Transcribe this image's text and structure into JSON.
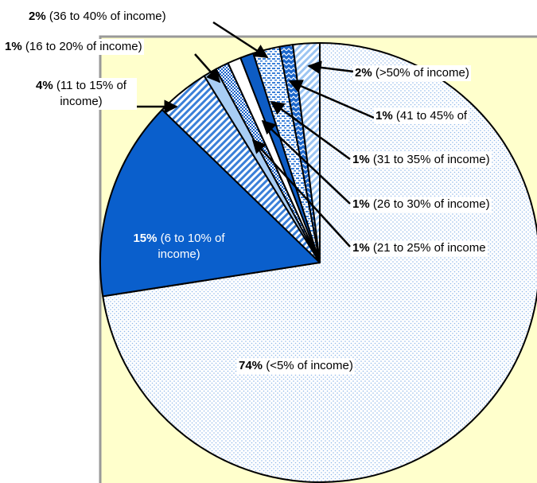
{
  "chart_data": {
    "type": "pie",
    "categories": [
      "(<5% of income)",
      "(6 to 10% of income)",
      "(11 to 15% of income)",
      "(16 to 20% of income)",
      "(21 to 25% of income",
      "(26 to 30% of income)",
      "(31 to 35% of income)",
      "(36 to 40% of income)",
      "(41 to 45% of",
      "(>50% of income)"
    ],
    "values": [
      74,
      15,
      4,
      1,
      1,
      1,
      1,
      2,
      1,
      2
    ],
    "value_labels": [
      "74%",
      "15%",
      "4%",
      "1%",
      "1%",
      "1%",
      "1%",
      "2%",
      "1%",
      "2%"
    ],
    "colors": [
      "#8fb8ea",
      "#0a5fcc",
      "#3a7fd8",
      "#a8cdf4",
      "#1560c8",
      "#ffffff",
      "#0d5cc4",
      "#3a7fd8",
      "#1a66cc",
      "#9cc5f2"
    ],
    "patterns": [
      "dots",
      "solid",
      "diagonal",
      "solid",
      "checks",
      "solid",
      "solid",
      "hdash",
      "zigzag",
      "diagonal"
    ]
  }
}
